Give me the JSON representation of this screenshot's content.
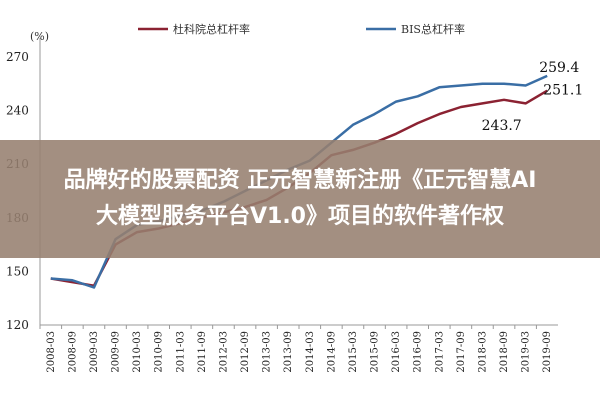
{
  "overlay": {
    "line1": "品牌好的股票配资 正元智慧新注册《正元智慧AI",
    "line2": "大模型服务平台V1.0》项目的软件著作权"
  },
  "colors": {
    "series1": "#8b2232",
    "series2": "#3a6ea5",
    "overlay": "#96806f"
  },
  "chart_data": {
    "type": "line",
    "unit_label": "(%)",
    "xlabel": "",
    "ylabel": "",
    "ylim": [
      120,
      275
    ],
    "yticks": [
      120,
      150,
      180,
      210,
      240,
      270
    ],
    "grid": false,
    "legend_position": "top",
    "x": [
      "2008-03",
      "2008-09",
      "2009-03",
      "2009-09",
      "2010-03",
      "2010-09",
      "2011-03",
      "2011-09",
      "2012-03",
      "2012-09",
      "2013-03",
      "2013-09",
      "2014-03",
      "2014-09",
      "2015-03",
      "2015-09",
      "2016-03",
      "2016-09",
      "2017-03",
      "2017-09",
      "2018-03",
      "2018-09",
      "2019-03",
      "2019-09"
    ],
    "series": [
      {
        "name": "杜科院总杠杆率",
        "color": "#8b2232",
        "values": [
          146,
          144,
          142,
          165,
          172,
          174,
          177,
          180,
          183,
          186,
          190,
          197,
          205,
          215,
          218,
          222,
          227,
          233,
          238,
          242,
          244,
          246,
          244,
          251.1
        ]
      },
      {
        "name": "BIS总杠杆率",
        "color": "#3a6ea5",
        "values": [
          146,
          145,
          141,
          168,
          176,
          178,
          181,
          184,
          189,
          195,
          201,
          207,
          212,
          222,
          232,
          238,
          245,
          248,
          253,
          254,
          255,
          255,
          254,
          259.4
        ]
      }
    ],
    "annotations": [
      {
        "text": "259.4",
        "x": "2019-09",
        "y": 259.4,
        "series": "BIS总杠杆率"
      },
      {
        "text": "251.1",
        "x": "2019-09",
        "y": 251.1,
        "series": "杜科院总杠杆率"
      },
      {
        "text": "243.7",
        "x": "2019-03",
        "y": 243.7,
        "series": "杜科院总杠杆率"
      }
    ]
  }
}
